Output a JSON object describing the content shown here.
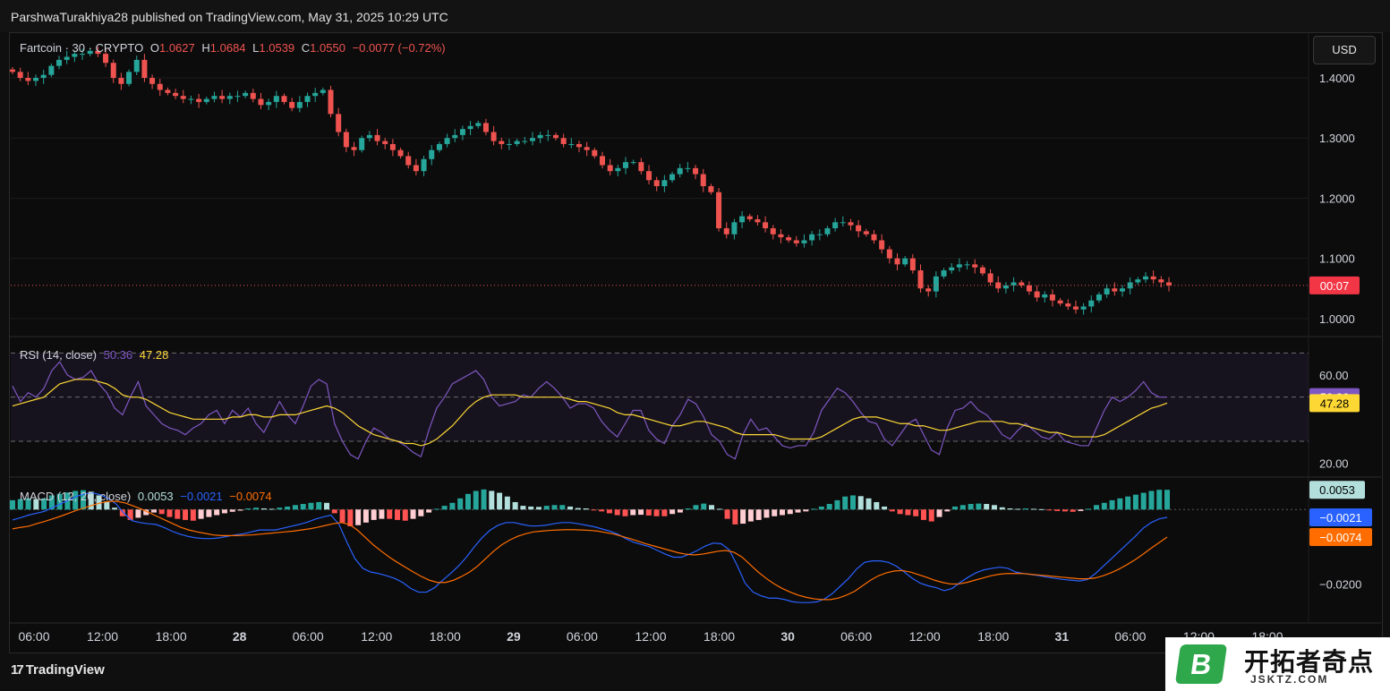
{
  "header": {
    "publisher_line": "ParshwaTurakhiya28 published on TradingView.com, May 31, 2025 10:29 UTC"
  },
  "currency_button": "USD",
  "footer": {
    "brand": "TradingView"
  },
  "watermark": {
    "text": "开拓者奇点",
    "url": "JSKTZ.COM",
    "letter": "B"
  },
  "price_pane": {
    "symbol": "Fartcoin · 30 · CRYPTO",
    "o_label": "O",
    "o": "1.0627",
    "h_label": "H",
    "h": "1.0684",
    "l_label": "L",
    "l": "1.0539",
    "c_label": "C",
    "c": "1.0550",
    "change": "−0.0077 (−0.72%)",
    "countdown": "00:07",
    "last_price": 1.055
  },
  "rsi_pane": {
    "label": "RSI (14, close)",
    "rsi": "50.36",
    "ma": "47.28",
    "upper": 70,
    "lower": 30,
    "middle": 50
  },
  "macd_pane": {
    "label": "MACD (12, 26, close)",
    "hist": "0.0053",
    "macd": "−0.0021",
    "signal": "−0.0074"
  },
  "colors": {
    "up": "#26a69a",
    "down": "#ef5350",
    "rsi_line": "#7e57c2",
    "rsi_ma": "#fdd835",
    "macd": "#2962ff",
    "signal": "#ff6d00",
    "hist_up": "#26a69a",
    "hist_up_light": "#b2dfdb",
    "hist_down": "#ff5252",
    "hist_down_light": "#ffcdd2"
  },
  "chart_data": [
    {
      "type": "candlestick",
      "title": "Fartcoin · 30 · CRYPTO",
      "ylim": [
        0.97,
        1.47
      ],
      "y_ticks": [
        "1.4000",
        "1.3000",
        "1.2000",
        "1.1000",
        "1.0000"
      ],
      "x_ticks": [
        "06:00",
        "12:00",
        "18:00",
        "28",
        "06:00",
        "12:00",
        "18:00",
        "29",
        "06:00",
        "12:00",
        "18:00",
        "30",
        "06:00",
        "12:00",
        "18:00",
        "31",
        "06:00",
        "12:00",
        "18:00"
      ],
      "closes": [
        1.41,
        1.4,
        1.395,
        1.4,
        1.405,
        1.42,
        1.43,
        1.435,
        1.44,
        1.44,
        1.445,
        1.44,
        1.425,
        1.4,
        1.39,
        1.41,
        1.43,
        1.4,
        1.39,
        1.38,
        1.375,
        1.37,
        1.365,
        1.365,
        1.36,
        1.365,
        1.37,
        1.365,
        1.37,
        1.37,
        1.375,
        1.365,
        1.355,
        1.36,
        1.37,
        1.36,
        1.35,
        1.36,
        1.37,
        1.375,
        1.38,
        1.34,
        1.31,
        1.285,
        1.28,
        1.3,
        1.305,
        1.295,
        1.29,
        1.28,
        1.27,
        1.255,
        1.245,
        1.265,
        1.28,
        1.29,
        1.3,
        1.305,
        1.315,
        1.32,
        1.325,
        1.31,
        1.295,
        1.29,
        1.29,
        1.295,
        1.295,
        1.3,
        1.305,
        1.305,
        1.3,
        1.29,
        1.29,
        1.285,
        1.28,
        1.27,
        1.255,
        1.245,
        1.25,
        1.26,
        1.26,
        1.245,
        1.23,
        1.22,
        1.23,
        1.24,
        1.25,
        1.25,
        1.24,
        1.22,
        1.21,
        1.15,
        1.14,
        1.16,
        1.17,
        1.165,
        1.16,
        1.15,
        1.14,
        1.135,
        1.13,
        1.125,
        1.13,
        1.14,
        1.14,
        1.15,
        1.16,
        1.16,
        1.155,
        1.145,
        1.14,
        1.13,
        1.115,
        1.1,
        1.09,
        1.1,
        1.08,
        1.05,
        1.045,
        1.07,
        1.08,
        1.085,
        1.09,
        1.09,
        1.085,
        1.075,
        1.06,
        1.05,
        1.055,
        1.06,
        1.055,
        1.045,
        1.035,
        1.04,
        1.03,
        1.025,
        1.02,
        1.015,
        1.02,
        1.03,
        1.04,
        1.05,
        1.045,
        1.05,
        1.06,
        1.065,
        1.07,
        1.065,
        1.06,
        1.055
      ]
    },
    {
      "type": "line",
      "title": "RSI (14, close)",
      "ylim": [
        15,
        75
      ],
      "y_ticks": [
        "60.00",
        "20.00"
      ],
      "series": [
        {
          "name": "RSI",
          "values": [
            55,
            48,
            52,
            50,
            54,
            62,
            66,
            60,
            58,
            59,
            62,
            56,
            52,
            45,
            42,
            50,
            57,
            46,
            42,
            38,
            36,
            35,
            33,
            36,
            38,
            42,
            44,
            38,
            44,
            41,
            45,
            38,
            34,
            41,
            48,
            42,
            38,
            46,
            55,
            58,
            56,
            38,
            30,
            24,
            22,
            30,
            36,
            34,
            31,
            30,
            28,
            25,
            23,
            35,
            45,
            50,
            56,
            58,
            60,
            62,
            58,
            50,
            46,
            47,
            48,
            51,
            50,
            54,
            57,
            54,
            50,
            45,
            47,
            47,
            45,
            39,
            35,
            32,
            38,
            44,
            44,
            35,
            31,
            29,
            37,
            42,
            49,
            47,
            41,
            33,
            30,
            24,
            22,
            33,
            40,
            35,
            36,
            32,
            28,
            27,
            28,
            28,
            34,
            44,
            49,
            54,
            52,
            48,
            43,
            39,
            38,
            31,
            28,
            33,
            38,
            40,
            33,
            26,
            24,
            36,
            44,
            45,
            48,
            44,
            42,
            38,
            33,
            31,
            35,
            38,
            35,
            32,
            31,
            34,
            30,
            29,
            28,
            28,
            36,
            44,
            50,
            48,
            50,
            53,
            57,
            52,
            50,
            50
          ]
        },
        {
          "name": "MA",
          "values": [
            46,
            47,
            48,
            49,
            50,
            53,
            56,
            57,
            58,
            58,
            58,
            57,
            56,
            54,
            51,
            50,
            50,
            49,
            47,
            45,
            43,
            42,
            41,
            40,
            40,
            40,
            40,
            40,
            41,
            41,
            42,
            42,
            41,
            41,
            42,
            42,
            42,
            43,
            44,
            45,
            46,
            45,
            43,
            40,
            37,
            35,
            33,
            32,
            31,
            30,
            29,
            29,
            28,
            29,
            31,
            34,
            37,
            41,
            45,
            48,
            50,
            51,
            51,
            51,
            51,
            50,
            50,
            50,
            50,
            50,
            50,
            49,
            48,
            48,
            47,
            46,
            45,
            43,
            42,
            42,
            41,
            40,
            39,
            38,
            37,
            37,
            38,
            39,
            39,
            38,
            37,
            36,
            34,
            33,
            33,
            33,
            33,
            33,
            32,
            31,
            31,
            31,
            31,
            32,
            34,
            36,
            38,
            40,
            41,
            41,
            41,
            40,
            39,
            38,
            38,
            37,
            37,
            36,
            35,
            35,
            36,
            37,
            38,
            39,
            39,
            39,
            39,
            38,
            38,
            37,
            36,
            35,
            34,
            34,
            33,
            32,
            32,
            32,
            32,
            33,
            35,
            37,
            39,
            41,
            43,
            45,
            46,
            47.3
          ]
        }
      ]
    },
    {
      "type": "bar+line",
      "title": "MACD (12, 26, close)",
      "ylim": [
        -0.03,
        0.008
      ],
      "y_ticks": [
        "−0.0200"
      ],
      "series": [
        {
          "name": "histogram",
          "values": [
            0.0025,
            0.0028,
            0.003,
            0.0028,
            0.003,
            0.0038,
            0.0042,
            0.0046,
            0.005,
            0.0052,
            0.0048,
            0.0038,
            0.0022,
            0.0005,
            -0.0018,
            -0.0028,
            -0.0022,
            -0.0015,
            -0.0008,
            -0.0012,
            -0.002,
            -0.0025,
            -0.0028,
            -0.003,
            -0.0025,
            -0.002,
            -0.0015,
            -0.001,
            -0.0006,
            -0.0003,
            0.0003,
            0.0005,
            0.0003,
            0.0002,
            0.0005,
            0.0008,
            0.0012,
            0.0015,
            0.0018,
            0.002,
            0.0018,
            -0.001,
            -0.0035,
            -0.0045,
            -0.0042,
            -0.0035,
            -0.0028,
            -0.0025,
            -0.0025,
            -0.0028,
            -0.003,
            -0.0025,
            -0.0018,
            -0.0008,
            0.0002,
            0.001,
            0.0018,
            0.003,
            0.0042,
            0.005,
            0.0054,
            0.005,
            0.0045,
            0.0035,
            0.002,
            0.001,
            0.0008,
            0.0007,
            0.001,
            0.0012,
            0.0012,
            0.0008,
            0.0004,
            0.0003,
            -0.0002,
            -0.0005,
            -0.001,
            -0.0015,
            -0.0018,
            -0.0015,
            -0.0014,
            -0.0016,
            -0.0018,
            -0.0018,
            -0.0012,
            -0.0008,
            0.0003,
            0.0012,
            0.0016,
            0.0012,
            0.0002,
            -0.0025,
            -0.004,
            -0.0038,
            -0.0032,
            -0.0028,
            -0.0022,
            -0.0018,
            -0.0015,
            -0.0012,
            -0.0008,
            -0.0005,
            0.0002,
            0.0008,
            0.0015,
            0.0025,
            0.0035,
            0.0038,
            0.0036,
            0.003,
            0.002,
            0.0008,
            -0.0005,
            -0.0012,
            -0.0015,
            -0.0018,
            -0.0028,
            -0.0032,
            -0.002,
            -0.0005,
            0.0008,
            0.0012,
            0.0015,
            0.0016,
            0.0015,
            0.0012,
            0.0006,
            0.0003,
            0.0002,
            0.0003,
            0.0002,
            0.0001,
            -0.0002,
            -0.0004,
            -0.0005,
            -0.0006,
            -0.0004,
            0.0002,
            0.0012,
            0.0018,
            0.0025,
            0.003,
            0.0035,
            0.004,
            0.0045,
            0.005,
            0.0053,
            0.0053
          ]
        },
        {
          "name": "MACD",
          "values": [
            -0.0028,
            -0.0022,
            -0.0015,
            -0.001,
            -0.0005,
            0.0005,
            0.0015,
            0.0025,
            0.0035,
            0.0042,
            0.0045,
            0.004,
            0.003,
            0.0015,
            -0.001,
            -0.003,
            -0.0035,
            -0.0038,
            -0.004,
            -0.0048,
            -0.0058,
            -0.0066,
            -0.0072,
            -0.0076,
            -0.0078,
            -0.0078,
            -0.0076,
            -0.0072,
            -0.0068,
            -0.0065,
            -0.006,
            -0.0055,
            -0.0055,
            -0.0055,
            -0.005,
            -0.0045,
            -0.004,
            -0.0034,
            -0.0026,
            -0.002,
            -0.0015,
            -0.004,
            -0.0088,
            -0.0132,
            -0.0158,
            -0.0168,
            -0.0172,
            -0.0178,
            -0.0185,
            -0.0196,
            -0.0212,
            -0.0222,
            -0.0222,
            -0.021,
            -0.019,
            -0.0172,
            -0.0152,
            -0.0128,
            -0.01,
            -0.0075,
            -0.0055,
            -0.0042,
            -0.0035,
            -0.0035,
            -0.004,
            -0.0044,
            -0.0044,
            -0.0042,
            -0.0038,
            -0.0035,
            -0.0035,
            -0.0038,
            -0.0042,
            -0.0046,
            -0.0052,
            -0.0058,
            -0.0066,
            -0.0078,
            -0.0088,
            -0.0094,
            -0.01,
            -0.011,
            -0.012,
            -0.0128,
            -0.0128,
            -0.012,
            -0.011,
            -0.0098,
            -0.009,
            -0.0092,
            -0.0108,
            -0.015,
            -0.0198,
            -0.0222,
            -0.0232,
            -0.0238,
            -0.0238,
            -0.0242,
            -0.0248,
            -0.025,
            -0.025,
            -0.0248,
            -0.024,
            -0.0225,
            -0.0205,
            -0.0185,
            -0.016,
            -0.0142,
            -0.0138,
            -0.0138,
            -0.0142,
            -0.0152,
            -0.0168,
            -0.0185,
            -0.0198,
            -0.0205,
            -0.021,
            -0.0218,
            -0.0212,
            -0.0196,
            -0.0182,
            -0.017,
            -0.0162,
            -0.0158,
            -0.0155,
            -0.0158,
            -0.0168,
            -0.0172,
            -0.0175,
            -0.0178,
            -0.0182,
            -0.0185,
            -0.0188,
            -0.019,
            -0.0192,
            -0.0188,
            -0.0172,
            -0.0152,
            -0.0132,
            -0.0112,
            -0.0092,
            -0.0072,
            -0.005,
            -0.0035,
            -0.0025,
            -0.0021
          ]
        },
        {
          "name": "Signal",
          "values": [
            -0.0052,
            -0.0048,
            -0.0045,
            -0.0038,
            -0.0032,
            -0.0025,
            -0.0018,
            -0.001,
            -0.0002,
            0.0005,
            0.0012,
            0.0018,
            0.0022,
            0.0022,
            0.0018,
            0.001,
            0.0002,
            -0.0008,
            -0.0018,
            -0.0028,
            -0.0038,
            -0.0048,
            -0.0055,
            -0.006,
            -0.0064,
            -0.0068,
            -0.007,
            -0.007,
            -0.007,
            -0.0069,
            -0.0068,
            -0.0066,
            -0.0064,
            -0.0062,
            -0.006,
            -0.0058,
            -0.0055,
            -0.0052,
            -0.0048,
            -0.0043,
            -0.0038,
            -0.0035,
            -0.004,
            -0.0055,
            -0.0075,
            -0.0095,
            -0.0112,
            -0.0128,
            -0.0142,
            -0.0155,
            -0.0168,
            -0.018,
            -0.019,
            -0.0196,
            -0.0196,
            -0.019,
            -0.018,
            -0.0168,
            -0.0152,
            -0.0132,
            -0.0112,
            -0.0095,
            -0.0082,
            -0.0072,
            -0.0065,
            -0.006,
            -0.0058,
            -0.0056,
            -0.0055,
            -0.0054,
            -0.0054,
            -0.0055,
            -0.0056,
            -0.0058,
            -0.0062,
            -0.0066,
            -0.0072,
            -0.0078,
            -0.0085,
            -0.0092,
            -0.0098,
            -0.0104,
            -0.011,
            -0.0116,
            -0.012,
            -0.0122,
            -0.012,
            -0.0116,
            -0.0112,
            -0.011,
            -0.0115,
            -0.0128,
            -0.0148,
            -0.0168,
            -0.0185,
            -0.02,
            -0.0212,
            -0.0222,
            -0.023,
            -0.0236,
            -0.024,
            -0.0242,
            -0.0242,
            -0.0238,
            -0.023,
            -0.022,
            -0.0205,
            -0.019,
            -0.0178,
            -0.017,
            -0.0165,
            -0.0164,
            -0.0168,
            -0.0175,
            -0.0182,
            -0.019,
            -0.0196,
            -0.02,
            -0.02,
            -0.0196,
            -0.019,
            -0.0184,
            -0.0178,
            -0.0174,
            -0.0172,
            -0.0172,
            -0.0172,
            -0.0174,
            -0.0176,
            -0.0178,
            -0.018,
            -0.0182,
            -0.0184,
            -0.0186,
            -0.0186,
            -0.0184,
            -0.0178,
            -0.017,
            -0.016,
            -0.0148,
            -0.0135,
            -0.012,
            -0.0104,
            -0.0089,
            -0.0074
          ]
        }
      ]
    }
  ]
}
